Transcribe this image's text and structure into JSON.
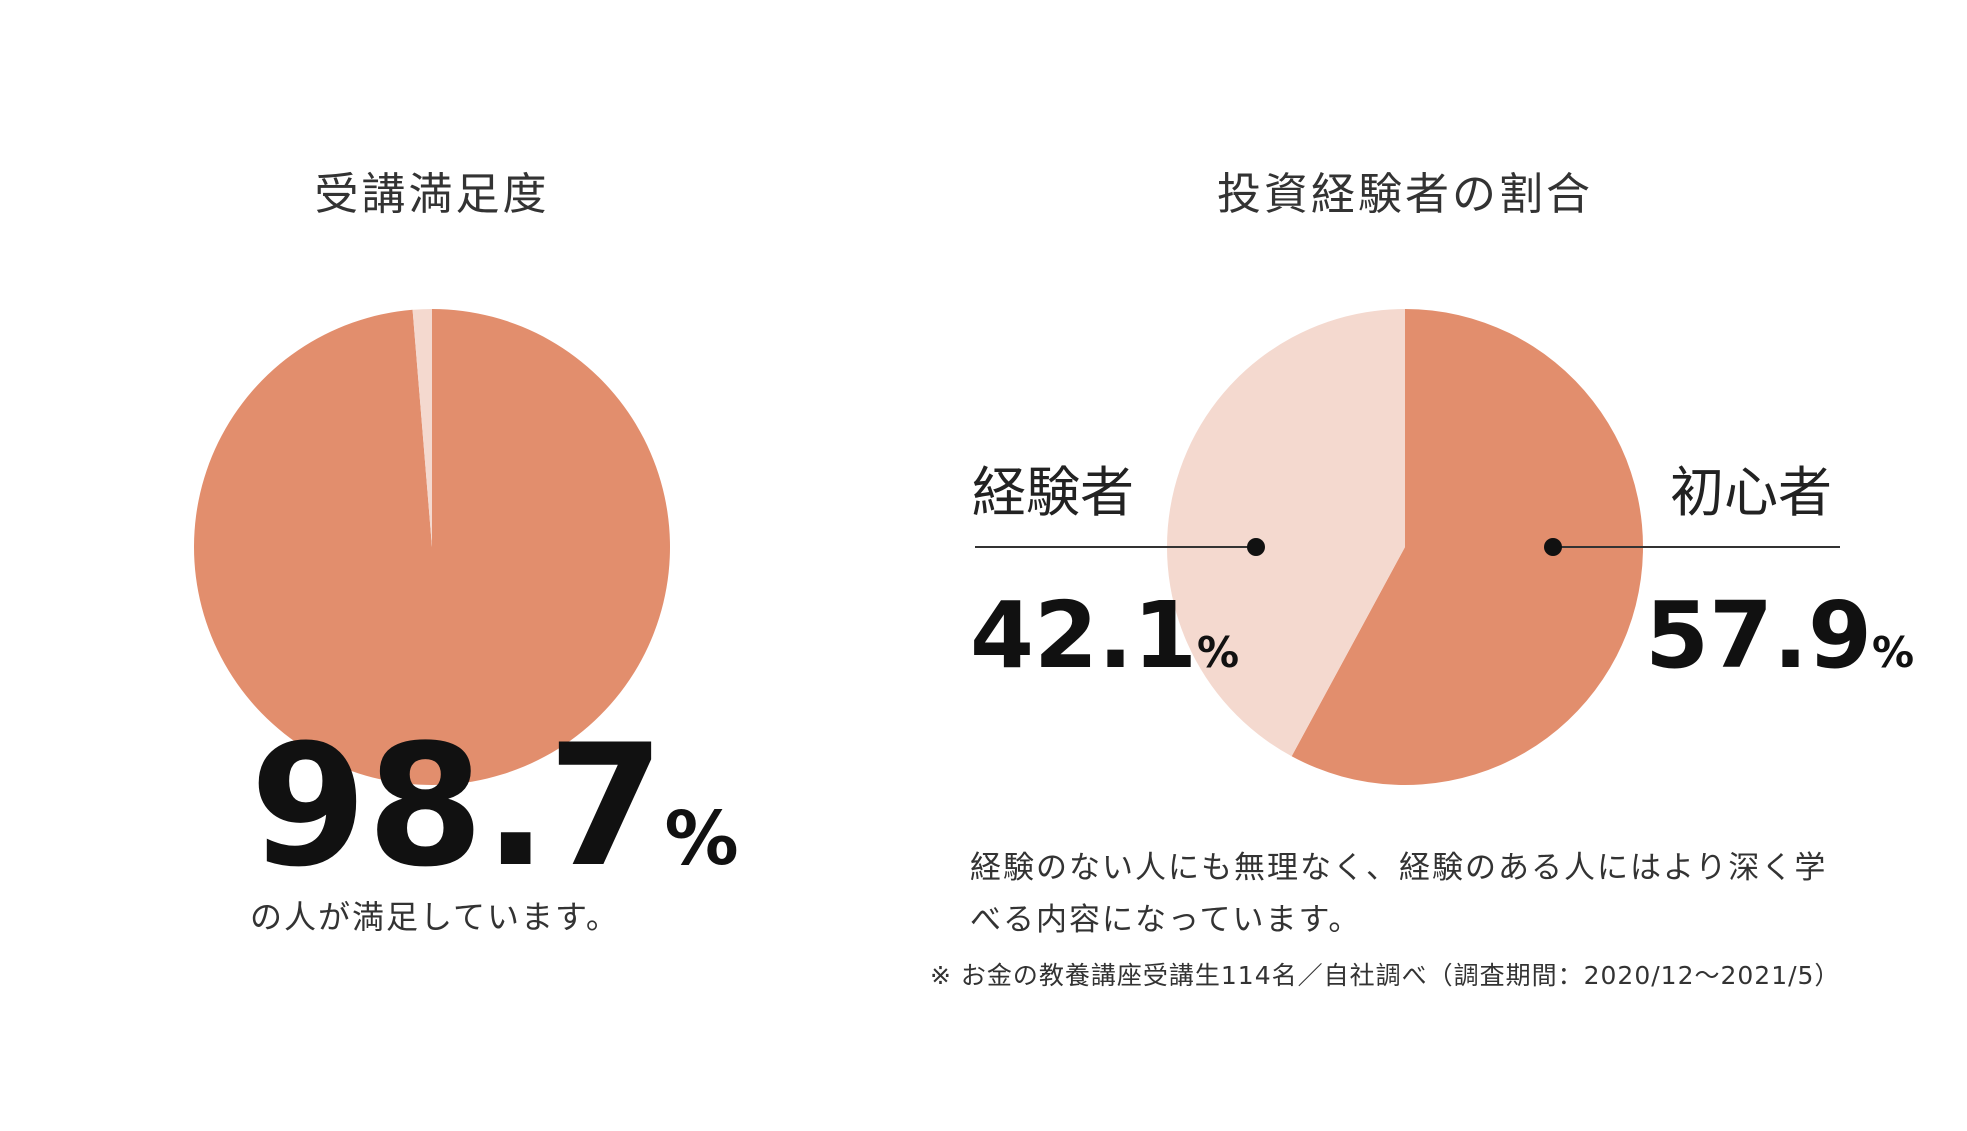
{
  "left_panel": {
    "title": "受講満足度",
    "value": "98.7",
    "unit": "%",
    "caption": "の人が満足しています。"
  },
  "right_panel": {
    "title": "投資経験者の割合",
    "left_label": "経験者",
    "left_value": "42.1",
    "right_label": "初心者",
    "right_value": "57.9",
    "unit": "%",
    "description_line1": "経験のない人にも無理なく、経験のある人にはより深く学",
    "description_line2": "べる内容になっています。",
    "note": "※ お金の教養講座受講生114名／自社調べ（調査期間：2020/12～2021/5）"
  },
  "colors": {
    "main": "#e28e6d",
    "light": "#f4d9cf",
    "leader": "#333333"
  },
  "chart_data": [
    {
      "type": "pie",
      "title": "受講満足度",
      "slices": [
        {
          "label": "",
          "value": 98.7,
          "color": "#e28e6d"
        },
        {
          "label": "",
          "value": 1.3,
          "color": "#f4d9cf"
        }
      ]
    },
    {
      "type": "pie",
      "title": "投資経験者の割合",
      "slices": [
        {
          "label": "初心者",
          "value": 57.9,
          "color": "#e28e6d"
        },
        {
          "label": "経験者",
          "value": 42.1,
          "color": "#f4d9cf"
        }
      ]
    }
  ]
}
